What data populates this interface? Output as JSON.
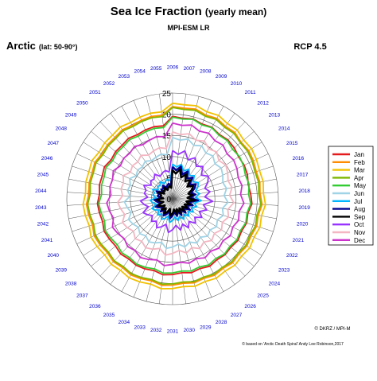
{
  "header": {
    "title_main": "Sea Ice Fraction",
    "title_sub": "(yearly mean)",
    "model": "MPI-ESM LR",
    "region": "Arctic",
    "lat": "(lat: 50-90°)",
    "scenario": "RCP 4.5"
  },
  "footer": {
    "credit": "© DKRZ / MPI-M",
    "note": "© based on 'Arctic Death Spiral' Andy Lee Robinson,2017"
  },
  "colors": {
    "Jan": "#e41a1c",
    "Feb": "#ff8c00",
    "Mar": "#f2c200",
    "Apr": "#7fb800",
    "May": "#33cc33",
    "Jun": "#9fd3e6",
    "Jul": "#00b7ff",
    "Aug": "#000090",
    "Sep": "#000000",
    "Oct": "#9933ff",
    "Nov": "#f4b6c2",
    "Dec": "#cc33cc",
    "year_labels": "#0000cc"
  },
  "chart_data": {
    "type": "polar-line",
    "title": "Sea Ice Fraction (yearly mean)",
    "radial_ticks": [
      0,
      5,
      10,
      15,
      20,
      25
    ],
    "radial_range": [
      0,
      25
    ],
    "years": [
      2006,
      2007,
      2008,
      2009,
      2010,
      2011,
      2012,
      2013,
      2014,
      2015,
      2016,
      2017,
      2018,
      2019,
      2020,
      2021,
      2022,
      2023,
      2024,
      2025,
      2026,
      2027,
      2028,
      2029,
      2030,
      2031,
      2032,
      2033,
      2034,
      2035,
      2036,
      2037,
      2038,
      2039,
      2040,
      2041,
      2042,
      2043,
      2044,
      2045,
      2046,
      2047,
      2048,
      2049,
      2050,
      2051,
      2052,
      2053,
      2054,
      2055
    ],
    "legend_position": "right",
    "grid": true,
    "series": [
      {
        "name": "Jan",
        "values": [
          19.5,
          19.2,
          19.5,
          19.0,
          19.3,
          18.8,
          19.1,
          18.9,
          18.5,
          18.7,
          18.6,
          18.2,
          18.5,
          18.8,
          18.1,
          18.4,
          18.0,
          18.3,
          17.9,
          18.1,
          17.8,
          18.2,
          17.7,
          18.0,
          17.6,
          17.9,
          18.1,
          17.5,
          17.8,
          17.9,
          17.6,
          17.9,
          17.5,
          17.7,
          17.9,
          17.4,
          17.6,
          17.8,
          17.3,
          17.6,
          17.5,
          17.8,
          17.2,
          17.5,
          17.4,
          17.7,
          17.3,
          17.5,
          17.6,
          17.4
        ]
      },
      {
        "name": "Feb",
        "values": [
          21.8,
          21.6,
          21.9,
          21.3,
          21.7,
          21.2,
          21.5,
          21.0,
          21.3,
          21.1,
          20.8,
          21.0,
          20.7,
          21.2,
          20.6,
          20.9,
          20.5,
          20.8,
          20.4,
          20.7,
          20.3,
          20.6,
          20.2,
          20.5,
          20.1,
          20.4,
          20.6,
          20.0,
          20.3,
          20.5,
          20.1,
          20.4,
          20.0,
          20.3,
          20.5,
          19.9,
          20.2,
          20.4,
          19.8,
          20.1,
          20.0,
          20.3,
          19.8,
          20.0,
          19.9,
          20.2,
          19.8,
          20.0,
          20.1,
          19.9
        ]
      },
      {
        "name": "Mar",
        "values": [
          22.6,
          22.4,
          22.7,
          22.1,
          22.5,
          22.0,
          22.3,
          21.8,
          22.1,
          21.9,
          21.6,
          21.8,
          21.5,
          22.0,
          21.4,
          21.7,
          21.3,
          21.6,
          21.2,
          21.5,
          21.1,
          21.4,
          21.0,
          21.3,
          20.9,
          21.2,
          21.4,
          20.8,
          21.1,
          21.3,
          20.9,
          21.2,
          20.8,
          21.1,
          21.3,
          20.7,
          21.0,
          21.2,
          20.6,
          20.9,
          20.8,
          21.1,
          20.6,
          20.8,
          20.7,
          21.0,
          20.6,
          20.8,
          20.9,
          20.7
        ]
      },
      {
        "name": "Apr",
        "values": [
          21.6,
          21.3,
          21.6,
          21.0,
          21.4,
          20.9,
          21.2,
          20.8,
          21.0,
          20.8,
          20.5,
          20.7,
          20.4,
          20.9,
          20.3,
          20.6,
          20.2,
          20.5,
          20.1,
          20.4,
          20.0,
          20.3,
          19.9,
          20.2,
          19.8,
          20.1,
          20.3,
          19.7,
          20.0,
          20.2,
          19.8,
          20.1,
          19.7,
          20.0,
          20.2,
          19.6,
          19.9,
          20.1,
          19.5,
          19.8,
          19.7,
          20.0,
          19.5,
          19.7,
          19.6,
          19.9,
          19.5,
          19.7,
          19.8,
          19.6
        ]
      },
      {
        "name": "May",
        "values": [
          19.3,
          19.0,
          19.4,
          18.8,
          19.2,
          18.6,
          18.9,
          18.4,
          18.7,
          18.5,
          18.1,
          18.4,
          18.0,
          18.5,
          17.9,
          18.2,
          17.7,
          18.0,
          17.6,
          17.9,
          17.4,
          17.8,
          17.3,
          17.6,
          17.2,
          17.5,
          17.7,
          17.1,
          17.4,
          17.6,
          17.2,
          17.5,
          17.0,
          17.3,
          17.6,
          16.9,
          17.2,
          17.5,
          16.8,
          17.1,
          17.0,
          17.4,
          16.8,
          17.1,
          17.0,
          17.3,
          16.9,
          17.1,
          17.2,
          17.0
        ]
      },
      {
        "name": "Jun",
        "values": [
          14.5,
          14.0,
          14.6,
          13.6,
          14.3,
          13.4,
          13.9,
          13.0,
          13.6,
          13.1,
          12.5,
          13.0,
          12.2,
          13.1,
          12.0,
          12.6,
          11.7,
          12.3,
          11.5,
          12.1,
          11.2,
          11.9,
          11.0,
          11.7,
          10.8,
          11.4,
          11.8,
          10.6,
          11.2,
          11.6,
          10.8,
          11.3,
          10.5,
          11.1,
          11.5,
          10.3,
          10.9,
          11.4,
          10.1,
          10.8,
          10.5,
          11.2,
          10.2,
          10.7,
          10.4,
          11.0,
          10.3,
          10.6,
          10.9,
          10.5
        ]
      },
      {
        "name": "Jul",
        "values": [
          8.2,
          7.6,
          8.4,
          7.1,
          8.0,
          6.8,
          7.5,
          6.3,
          7.2,
          6.6,
          5.7,
          6.5,
          5.4,
          6.8,
          5.2,
          6.0,
          4.9,
          5.8,
          4.7,
          5.6,
          4.5,
          5.5,
          4.4,
          5.3,
          4.3,
          5.1,
          5.6,
          4.2,
          5.0,
          5.5,
          4.4,
          5.2,
          4.1,
          4.9,
          5.4,
          4.0,
          4.8,
          5.3,
          3.9,
          4.7,
          4.5,
          5.2,
          4.0,
          4.6,
          4.3,
          5.0,
          4.1,
          4.5,
          4.8,
          4.3
        ]
      },
      {
        "name": "Aug",
        "values": [
          7.6,
          6.8,
          7.9,
          6.2,
          7.4,
          5.9,
          6.9,
          5.2,
          6.5,
          5.7,
          4.6,
          5.5,
          4.2,
          6.0,
          4.0,
          5.0,
          3.7,
          4.8,
          3.5,
          4.5,
          3.3,
          4.4,
          3.2,
          4.2,
          3.1,
          4.0,
          4.6,
          3.0,
          3.9,
          4.5,
          3.3,
          4.1,
          3.0,
          3.8,
          4.4,
          2.9,
          3.7,
          4.3,
          2.8,
          3.6,
          3.4,
          4.2,
          2.9,
          3.5,
          3.2,
          3.9,
          3.0,
          3.4,
          3.7,
          3.2
        ]
      },
      {
        "name": "Sep",
        "values": [
          6.8,
          6.0,
          7.2,
          5.4,
          6.6,
          5.1,
          6.1,
          4.5,
          5.8,
          5.0,
          3.9,
          4.8,
          3.5,
          5.3,
          3.3,
          4.3,
          3.1,
          4.1,
          2.9,
          3.9,
          2.7,
          3.8,
          2.6,
          3.6,
          2.5,
          3.4,
          4.0,
          2.4,
          3.3,
          3.9,
          2.7,
          3.5,
          2.4,
          3.2,
          3.8,
          2.3,
          3.1,
          3.7,
          2.2,
          3.0,
          2.8,
          3.6,
          2.3,
          2.9,
          2.6,
          3.3,
          2.4,
          2.8,
          3.1,
          2.6
        ]
      },
      {
        "name": "Oct",
        "values": [
          11.4,
          10.6,
          11.7,
          9.9,
          11.1,
          9.5,
          10.5,
          8.8,
          10.0,
          9.2,
          8.0,
          9.0,
          7.6,
          9.5,
          7.4,
          8.5,
          7.0,
          8.2,
          6.8,
          7.9,
          6.6,
          7.8,
          6.4,
          7.6,
          6.3,
          7.3,
          8.0,
          6.2,
          7.1,
          7.8,
          6.5,
          7.3,
          6.2,
          7.0,
          7.7,
          6.0,
          6.9,
          7.6,
          5.9,
          6.8,
          6.6,
          7.5,
          6.0,
          6.7,
          6.4,
          7.2,
          6.1,
          6.6,
          6.9,
          6.4
        ]
      },
      {
        "name": "Nov",
        "values": [
          15.8,
          15.3,
          15.9,
          14.9,
          15.6,
          14.6,
          15.2,
          14.2,
          14.9,
          14.4,
          13.8,
          14.3,
          13.5,
          14.5,
          13.3,
          13.9,
          13.0,
          13.7,
          12.8,
          13.5,
          12.6,
          13.4,
          12.4,
          13.2,
          12.3,
          12.9,
          13.4,
          12.1,
          12.8,
          13.2,
          12.4,
          12.9,
          12.0,
          12.7,
          13.1,
          11.9,
          12.5,
          13.0,
          11.8,
          12.4,
          12.2,
          12.9,
          11.8,
          12.3,
          12.0,
          12.7,
          11.8,
          12.2,
          12.5,
          12.0
        ]
      },
      {
        "name": "Dec",
        "values": [
          17.9,
          17.5,
          18.0,
          17.2,
          17.7,
          17.0,
          17.4,
          16.7,
          17.1,
          16.8,
          16.3,
          16.7,
          16.1,
          16.9,
          16.0,
          16.4,
          15.7,
          16.2,
          15.5,
          16.0,
          15.3,
          15.9,
          15.2,
          15.7,
          15.1,
          15.5,
          15.9,
          14.9,
          15.4,
          15.8,
          15.1,
          15.5,
          14.8,
          15.3,
          15.7,
          14.7,
          15.2,
          15.6,
          14.6,
          15.1,
          14.9,
          15.5,
          14.6,
          15.0,
          14.8,
          15.3,
          14.6,
          14.9,
          15.2,
          14.8
        ]
      }
    ]
  }
}
